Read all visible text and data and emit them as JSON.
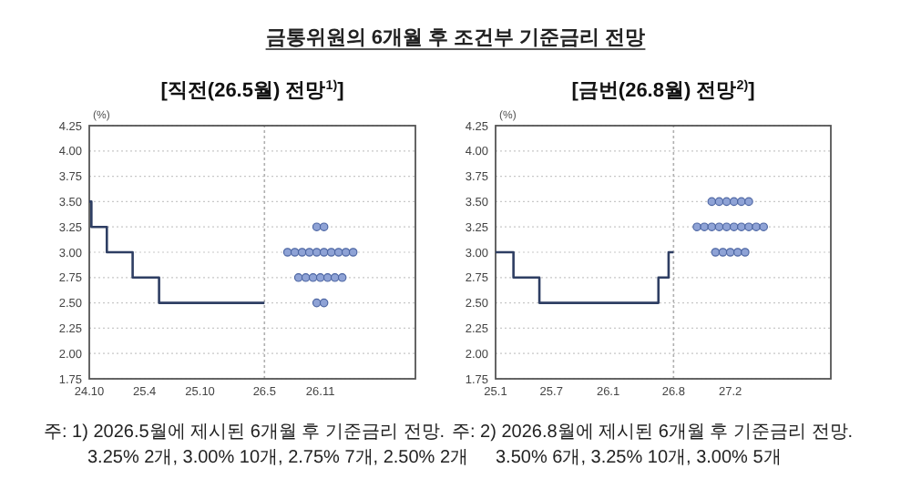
{
  "chart_data": [
    {
      "type": "line",
      "title": "금통위원의 6개월 후 조건부 기준금리 전망",
      "subtitle": "[직전(26.5월) 전망$^{1)}$]",
      "ylabel": "(%)",
      "xlim": [
        "2024-10-01",
        "2027-09-10"
      ],
      "ylim": [
        1.75,
        4.25
      ],
      "xticks": [
        {
          "value": "2024-10",
          "label": "24.10"
        },
        {
          "value": "2025-04",
          "label": "25.4"
        },
        {
          "value": "2025-10",
          "label": "25.10"
        },
        {
          "value": "2026-05",
          "label": "26.5"
        },
        {
          "value": "2026-11",
          "label": "26.11"
        }
      ],
      "yticks": [
        {
          "value": 1.75,
          "label": "1.75"
        },
        {
          "value": 2,
          "label": "2.00"
        },
        {
          "value": 2.25,
          "label": "2.25"
        },
        {
          "value": 2.5,
          "label": "2.50"
        },
        {
          "value": 2.75,
          "label": "2.75"
        },
        {
          "value": 3,
          "label": "3.00"
        },
        {
          "value": 3.25,
          "label": "3.25"
        },
        {
          "value": 3.5,
          "label": "3.50"
        },
        {
          "value": 3.75,
          "label": "3.75"
        },
        {
          "value": 4,
          "label": "4.00"
        },
        {
          "value": 4.25,
          "label": "4.25"
        }
      ],
      "grid": "y",
      "series": [
        {
          "type": "step",
          "color": "#2e3e63",
          "x": [
            "2024-10-01",
            "2024-10-08",
            "2024-11-28",
            "2025-02-21",
            "2025-05-19",
            "2026-05-01"
          ],
          "values": [
            3.5,
            3.25,
            3.0,
            2.75,
            2.5,
            2.5
          ]
        },
        {
          "type": "scatter",
          "marker": "circle",
          "color": "#8fa3d6",
          "x": [
            "2026-10-20",
            "2026-11-13",
            "2026-07-16",
            "2026-08-09",
            "2026-09-02",
            "2026-09-26",
            "2026-10-20",
            "2026-11-13",
            "2026-12-07",
            "2026-12-31",
            "2027-01-24",
            "2027-02-17",
            "2026-08-21",
            "2026-09-14",
            "2026-10-08",
            "2026-11-01",
            "2026-11-25",
            "2026-12-19",
            "2027-01-12",
            "2026-10-20",
            "2026-11-13"
          ],
          "values": [
            3.25,
            3.25,
            3.0,
            3.0,
            3.0,
            3.0,
            3.0,
            3.0,
            3.0,
            3.0,
            3.0,
            3.0,
            2.75,
            2.75,
            2.75,
            2.75,
            2.75,
            2.75,
            2.75,
            2.5,
            2.5
          ]
        }
      ],
      "ref_lines": [
        {
          "axis": "x",
          "value": "2026-05-01",
          "color": "#b0b0b0",
          "line_style": "dotted"
        }
      ],
      "annotations": [
        "주: 1) 2026.5월에 제시된 6개월 후 기준금리 전망.",
        "3.25% 2개,  3.00% 10개,  2.75% 7개,  2.50% 2개"
      ]
    },
    {
      "type": "line",
      "subtitle": "[금번(26.8월) 전망$^{2)}$]",
      "ylabel": "(%)",
      "xlim": [
        "2025-01-01",
        "2027-12-24"
      ],
      "ylim": [
        1.75,
        4.25
      ],
      "xticks": [
        {
          "value": "2025-01",
          "label": "25.1"
        },
        {
          "value": "2025-07",
          "label": "25.7"
        },
        {
          "value": "2026-01",
          "label": "26.1"
        },
        {
          "value": "2026-08",
          "label": "26.8"
        },
        {
          "value": "2027-02",
          "label": "27.2"
        }
      ],
      "yticks": [
        {
          "value": 1.75,
          "label": "1.75"
        },
        {
          "value": 2,
          "label": "2.00"
        },
        {
          "value": 2.25,
          "label": "2.25"
        },
        {
          "value": 2.5,
          "label": "2.50"
        },
        {
          "value": 2.75,
          "label": "2.75"
        },
        {
          "value": 3,
          "label": "3.00"
        },
        {
          "value": 3.25,
          "label": "3.25"
        },
        {
          "value": 3.5,
          "label": "3.50"
        },
        {
          "value": 3.75,
          "label": "3.75"
        },
        {
          "value": 4,
          "label": "4.00"
        },
        {
          "value": 4.25,
          "label": "4.25"
        }
      ],
      "grid": "y",
      "series": [
        {
          "type": "step",
          "color": "#2e3e63",
          "x": [
            "2025-01-01",
            "2025-02-28",
            "2025-05-23",
            "2026-06-13",
            "2026-07-16",
            "2026-08-01"
          ],
          "values": [
            3.0,
            2.75,
            2.5,
            2.75,
            3.0,
            3.0
          ]
        },
        {
          "type": "scatter",
          "marker": "circle",
          "color": "#8fa3d6",
          "x": [
            "2026-12-03",
            "2026-12-27",
            "2027-01-20",
            "2027-02-13",
            "2027-03-09",
            "2027-04-02",
            "2026-10-16",
            "2026-11-09",
            "2026-12-03",
            "2026-12-27",
            "2027-01-20",
            "2027-02-13",
            "2027-03-09",
            "2027-04-02",
            "2027-04-26",
            "2027-05-20",
            "2026-12-15",
            "2027-01-08",
            "2027-02-01",
            "2027-02-25",
            "2027-03-21"
          ],
          "values": [
            3.5,
            3.5,
            3.5,
            3.5,
            3.5,
            3.5,
            3.25,
            3.25,
            3.25,
            3.25,
            3.25,
            3.25,
            3.25,
            3.25,
            3.25,
            3.25,
            3.0,
            3.0,
            3.0,
            3.0,
            3.0
          ]
        }
      ],
      "ref_lines": [
        {
          "axis": "x",
          "value": "2026-08-01",
          "color": "#b0b0b0",
          "line_style": "dotted"
        }
      ],
      "annotations": [
        "주: 2) 2026.8월에 제시된 6개월 후 기준금리 전망.",
        "3.50%  6개,  3.25% 10개,  3.00% 5개"
      ]
    }
  ]
}
